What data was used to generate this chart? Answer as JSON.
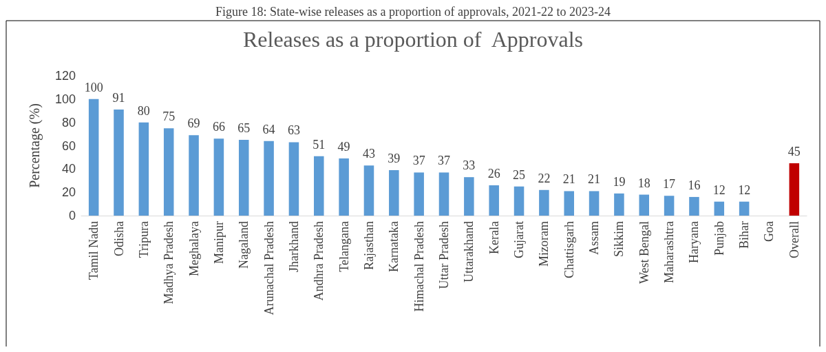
{
  "chart_data": {
    "type": "bar",
    "title": "Releases as a proportion of  Approvals",
    "ylabel": "Percentage (%)",
    "annotations": [
      "Figure 18: State-wise releases as a proportion of approvals, 2021-22 to 2023-24"
    ],
    "categories": [
      "Tamil Nadu",
      "Odisha",
      "Tripura",
      "Madhya Pradesh",
      "Meghalaya",
      "Manipur",
      "Nagaland",
      "Arunachal Pradesh",
      "Jharkhand",
      "Andhra Pradesh",
      "Telangana",
      "Rajasthan",
      "Karnataka",
      "Himachal Pradesh",
      "Uttar Pradesh",
      "Uttarakhand",
      "Kerala",
      "Gujarat",
      "Mizoram",
      "Chattisgarh",
      "Assam",
      "Sikkim",
      "West Bengal",
      "Maharashtra",
      "Haryana",
      "Punjab",
      "Bihar",
      "Goa",
      "Overall"
    ],
    "values": [
      100,
      91,
      80,
      75,
      69,
      66,
      65,
      64,
      63,
      51,
      49,
      43,
      39,
      37,
      37,
      33,
      26,
      25,
      22,
      21,
      21,
      19,
      18,
      17,
      16,
      12,
      12,
      null,
      45
    ],
    "colors": [
      "#5b9bd5",
      "#5b9bd5",
      "#5b9bd5",
      "#5b9bd5",
      "#5b9bd5",
      "#5b9bd5",
      "#5b9bd5",
      "#5b9bd5",
      "#5b9bd5",
      "#5b9bd5",
      "#5b9bd5",
      "#5b9bd5",
      "#5b9bd5",
      "#5b9bd5",
      "#5b9bd5",
      "#5b9bd5",
      "#5b9bd5",
      "#5b9bd5",
      "#5b9bd5",
      "#5b9bd5",
      "#5b9bd5",
      "#5b9bd5",
      "#5b9bd5",
      "#5b9bd5",
      "#5b9bd5",
      "#5b9bd5",
      "#5b9bd5",
      "#5b9bd5",
      "#c00000"
    ],
    "ylim": [
      0,
      120
    ],
    "yticks": [
      0,
      20,
      40,
      60,
      80,
      100,
      120
    ],
    "grid": false,
    "data_labels": true
  }
}
